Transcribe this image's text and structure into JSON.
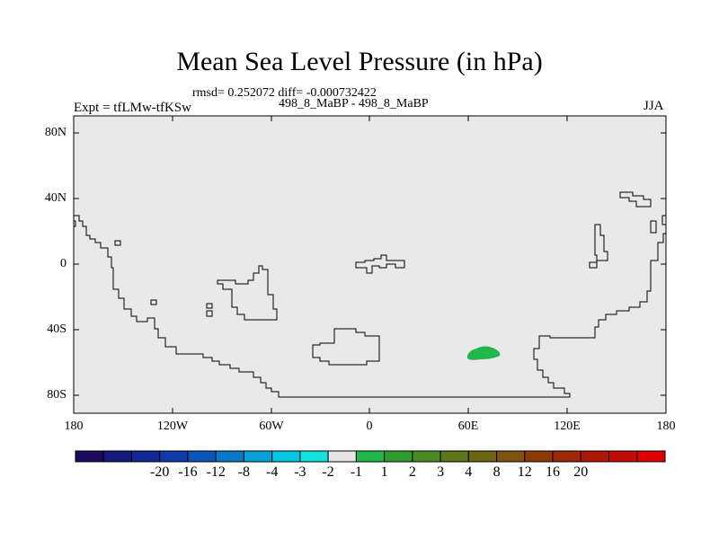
{
  "title": "Mean Sea Level Pressure (in hPa)",
  "stats_line": "rmsd= 0.252072 diff= -0.000732422",
  "case_line": "498_8_MaBP - 498_8_MaBP",
  "experiment_label": "Expt = tfLMw-tfKSw",
  "season_label": "JJA",
  "map_data": {
    "type": "heatmap",
    "projection": "cylindrical equidistant",
    "lon_range": [
      -180,
      180
    ],
    "lat_range": [
      -90,
      90
    ],
    "background_value_bin": "-1 to 1",
    "background_color": "#e9e9e9",
    "anomaly_patches": [
      {
        "center_lon": 68,
        "center_lat": -55,
        "value_bin": "1 to 2",
        "color": "#1fb84a"
      }
    ],
    "y_ticks": [
      "80N",
      "40N",
      "0",
      "40S",
      "80S"
    ],
    "x_ticks": [
      "180",
      "120W",
      "60W",
      "0",
      "60E",
      "120E",
      "180"
    ]
  },
  "colorbar": {
    "colors": [
      "#1d0a5c",
      "#141a7e",
      "#0f2896",
      "#0d3aa8",
      "#0a55b8",
      "#0a78c8",
      "#0aa0d8",
      "#06c8e0",
      "#12e2e0",
      "#e6e6e6",
      "#22b848",
      "#2e9c30",
      "#4a8a22",
      "#5e7418",
      "#6e6414",
      "#7e5210",
      "#8e3a08",
      "#9e2806",
      "#ae1804",
      "#c40a04",
      "#e00000"
    ],
    "labels": [
      "-20",
      "-16",
      "-12",
      "-8",
      "-4",
      "-3",
      "-2",
      "-1",
      "1",
      "2",
      "3",
      "4",
      "8",
      "12",
      "16",
      "20"
    ]
  }
}
